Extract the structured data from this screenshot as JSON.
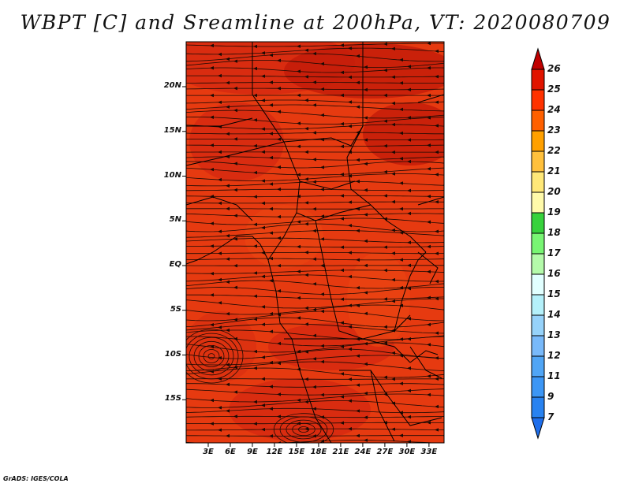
{
  "title": "WBPT [C] and Sreamline at 200hPa, VT: 2020080709",
  "credit": "GrADS: IGES/COLA",
  "axes": {
    "lat_ticks": [
      "20N",
      "15N",
      "10N",
      "5N",
      "EQ",
      "5S",
      "10S",
      "15S"
    ],
    "lon_ticks": [
      "3E",
      "6E",
      "9E",
      "12E",
      "15E",
      "18E",
      "21E",
      "24E",
      "27E",
      "30E",
      "33E"
    ]
  },
  "colorbar": {
    "levels": [
      "7",
      "9",
      "11",
      "12",
      "13",
      "14",
      "15",
      "16",
      "17",
      "18",
      "19",
      "20",
      "21",
      "22",
      "23",
      "24",
      "25",
      "26"
    ],
    "colors": [
      "#1e6eeb",
      "#2882f0",
      "#3c96f5",
      "#50a5f5",
      "#78b9fa",
      "#96d2fa",
      "#b4f0fa",
      "#e1ffff",
      "#b4faaa",
      "#78f573",
      "#37d23c",
      "#fffaaa",
      "#ffe878",
      "#ffc03c",
      "#ffa000",
      "#ff6000",
      "#ff3200",
      "#e11400",
      "#c00000"
    ]
  },
  "colors": {
    "field_base": "#e63a10",
    "field_warm": "#d42810",
    "field_dark": "#c01a08",
    "streamline": "#1a0a04",
    "border": "#000000"
  }
}
